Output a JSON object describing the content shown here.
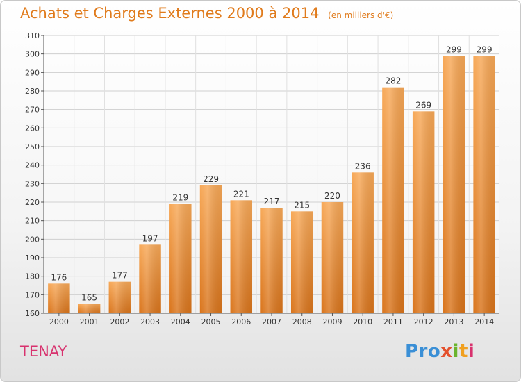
{
  "header": {
    "title": "Achats et Charges Externes 2000 à 2014",
    "unit": "(en milliers d'€)"
  },
  "footer": {
    "place": "TENAY",
    "logo": [
      "Pro",
      "x",
      "i",
      "t",
      "i"
    ]
  },
  "colors": {
    "bar_top": "#f7a857",
    "bar_bottom": "#d9741b",
    "title": "#e07b1c",
    "place": "#d8326e"
  },
  "chart_data": {
    "type": "bar",
    "title": "Achats et Charges Externes 2000 à 2014",
    "categories": [
      "2000",
      "2001",
      "2002",
      "2003",
      "2004",
      "2005",
      "2006",
      "2007",
      "2008",
      "2009",
      "2010",
      "2011",
      "2012",
      "2013",
      "2014"
    ],
    "values": [
      176,
      165,
      177,
      197,
      219,
      229,
      221,
      217,
      215,
      220,
      236,
      282,
      269,
      299,
      299
    ],
    "ylim": [
      160,
      310
    ],
    "yticks": [
      160,
      170,
      180,
      190,
      200,
      210,
      220,
      230,
      240,
      250,
      260,
      270,
      280,
      290,
      300,
      310
    ],
    "grid": true,
    "xlabel": "",
    "ylabel": ""
  }
}
